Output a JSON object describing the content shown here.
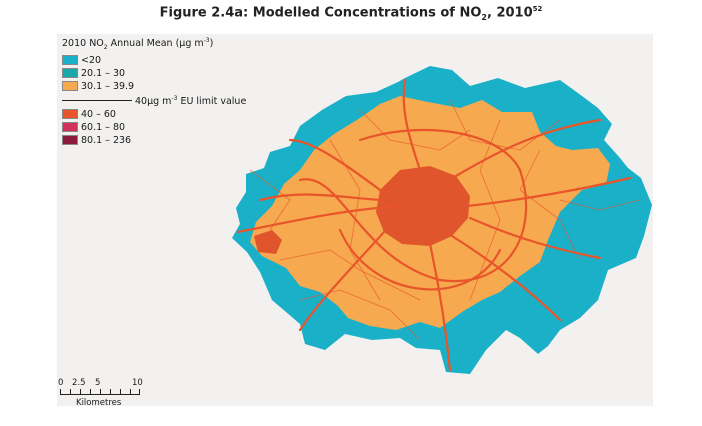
{
  "figure": {
    "title_prefix": "Figure 2.4a: Modelled Concentrations of NO",
    "title_sub": "2",
    "title_suffix": ", 2010",
    "title_ref": "52"
  },
  "legend": {
    "title_prefix": "2010 NO",
    "title_sub": "2",
    "title_suffix": " Annual Mean (µg m",
    "title_sup": "-3",
    "title_end": ")",
    "items": [
      {
        "label": "<20",
        "color": "#1ab0c8"
      },
      {
        "label": "20.1 – 30",
        "color": "#1aa8a8"
      },
      {
        "label": "30.1 – 39.9",
        "color": "#f6a94f"
      },
      {
        "label": "40 – 60",
        "color": "#e8552a"
      },
      {
        "label": "60.1 – 80",
        "color": "#d2325a"
      },
      {
        "label": "80.1 – 236",
        "color": "#8a1a3e"
      }
    ],
    "limit_prefix": "40µg m",
    "limit_sup": "-3",
    "limit_suffix": " EU limit value"
  },
  "scale": {
    "ticks": [
      "0",
      "2.5",
      "5",
      "10"
    ],
    "unit": "Kilometres"
  },
  "map": {
    "region": "Greater London",
    "background_color": "#f2f1ef",
    "band_colors": {
      "outer": "#1ab0c8",
      "middle": "#f6a94f",
      "roads": "#e8552a",
      "core": "#e0552c"
    }
  }
}
